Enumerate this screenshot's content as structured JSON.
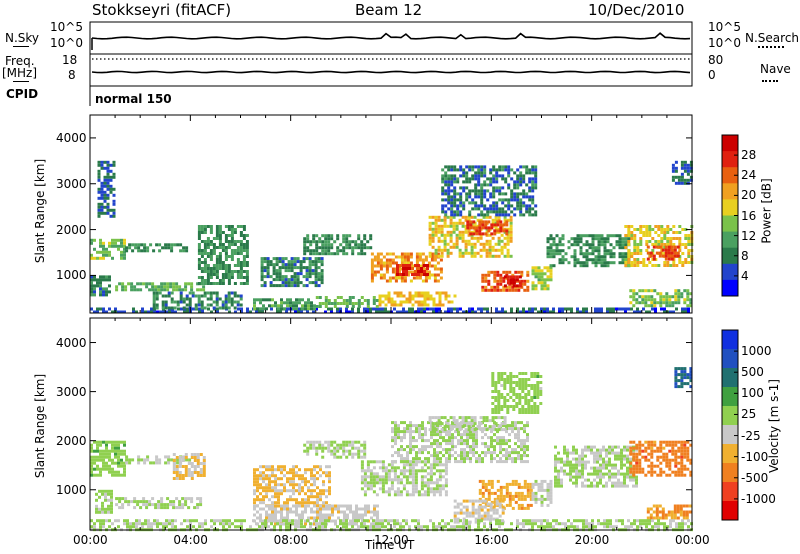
{
  "header": {
    "station": "Stokkseyri (fitACF)",
    "beam": "Beam 12",
    "date": "10/Dec/2010"
  },
  "top_panel": {
    "left_label": "N.Sky",
    "right_label": "N.Search",
    "left_ticks": [
      "10^5",
      "10^0"
    ],
    "right_ticks": [
      "10^5",
      "10^0"
    ]
  },
  "freq_panel": {
    "left_label_1": "Freq.",
    "left_label_2": "[MHz]",
    "right_label": "Nave",
    "left_ticks": [
      "18",
      "8"
    ],
    "right_ticks": [
      "80",
      "0"
    ]
  },
  "cpid": {
    "label": "CPID",
    "program": "normal 150"
  },
  "colors": {
    "frame": "#000000",
    "background": "#ffffff",
    "ground_scatter": "#c0c0c0"
  },
  "chart_data": [
    {
      "type": "heatmap",
      "panel": "power",
      "xlabel": "Time UT",
      "ylabel": "Slant Range [km]",
      "xlim": [
        0,
        24
      ],
      "ylim": [
        180,
        4500
      ],
      "x_ticks": [
        "00:00",
        "04:00",
        "08:00",
        "12:00",
        "16:00",
        "20:00",
        "00:00"
      ],
      "y_ticks": [
        "1000",
        "2000",
        "3000",
        "4000"
      ],
      "colorbar": {
        "label": "Power [dB]",
        "ticks": [
          "28",
          "24",
          "20",
          "16",
          "12",
          "8",
          "4"
        ],
        "range": [
          0,
          30
        ],
        "colors": [
          "#0000ff",
          "#2244cc",
          "#2a7a4a",
          "#4aa060",
          "#7ac24a",
          "#e8d020",
          "#f0a020",
          "#e86010",
          "#e02010",
          "#cc0000"
        ]
      },
      "regions": [
        {
          "t": [
            0.0,
            24.0
          ],
          "r": [
            180,
            300
          ],
          "v": 5
        },
        {
          "t": [
            0.0,
            1.4
          ],
          "r": [
            1400,
            1800
          ],
          "v": 13
        },
        {
          "t": [
            0.0,
            0.8
          ],
          "r": [
            550,
            1000
          ],
          "v": 8
        },
        {
          "t": [
            0.3,
            0.9
          ],
          "r": [
            2300,
            3500
          ],
          "v": 6
        },
        {
          "t": [
            1.4,
            3.8
          ],
          "r": [
            1550,
            1700
          ],
          "v": 9
        },
        {
          "t": [
            1.0,
            4.5
          ],
          "r": [
            700,
            850
          ],
          "v": 12
        },
        {
          "t": [
            2.5,
            6.0
          ],
          "r": [
            300,
            650
          ],
          "v": 8
        },
        {
          "t": [
            4.3,
            6.3
          ],
          "r": [
            800,
            2100
          ],
          "v": 9
        },
        {
          "t": [
            6.5,
            9.0
          ],
          "r": [
            300,
            500
          ],
          "v": 10
        },
        {
          "t": [
            6.8,
            9.2
          ],
          "r": [
            800,
            1400
          ],
          "v": 8
        },
        {
          "t": [
            8.5,
            11.2
          ],
          "r": [
            1500,
            1900
          ],
          "v": 9
        },
        {
          "t": [
            9.0,
            11.5
          ],
          "r": [
            300,
            550
          ],
          "v": 12
        },
        {
          "t": [
            11.2,
            14.0
          ],
          "r": [
            850,
            1500
          ],
          "v": 20
        },
        {
          "t": [
            12.2,
            13.5
          ],
          "r": [
            1000,
            1250
          ],
          "v": 26
        },
        {
          "t": [
            11.5,
            14.5
          ],
          "r": [
            350,
            650
          ],
          "v": 18
        },
        {
          "t": [
            13.5,
            16.8
          ],
          "r": [
            1400,
            2300
          ],
          "v": 17
        },
        {
          "t": [
            15.0,
            16.6
          ],
          "r": [
            1900,
            2200
          ],
          "v": 24
        },
        {
          "t": [
            15.6,
            17.5
          ],
          "r": [
            700,
            1100
          ],
          "v": 23
        },
        {
          "t": [
            16.5,
            17.2
          ],
          "r": [
            800,
            1000
          ],
          "v": 27
        },
        {
          "t": [
            14.0,
            17.8
          ],
          "r": [
            2300,
            3400
          ],
          "v": 7
        },
        {
          "t": [
            17.6,
            18.4
          ],
          "r": [
            700,
            1200
          ],
          "v": 14
        },
        {
          "t": [
            18.2,
            21.5
          ],
          "r": [
            1200,
            1900
          ],
          "v": 9
        },
        {
          "t": [
            21.3,
            24.0
          ],
          "r": [
            1200,
            2100
          ],
          "v": 17
        },
        {
          "t": [
            22.2,
            23.4
          ],
          "r": [
            1350,
            1650
          ],
          "v": 24
        },
        {
          "t": [
            21.5,
            24.0
          ],
          "r": [
            350,
            700
          ],
          "v": 13
        },
        {
          "t": [
            23.2,
            24.0
          ],
          "r": [
            3000,
            3500
          ],
          "v": 6
        }
      ]
    },
    {
      "type": "heatmap",
      "panel": "velocity",
      "xlabel": "Time UT",
      "ylabel": "Slant Range [km]",
      "xlim": [
        0,
        24
      ],
      "ylim": [
        180,
        4500
      ],
      "x_ticks": [
        "00:00",
        "04:00",
        "08:00",
        "12:00",
        "16:00",
        "20:00",
        "00:00"
      ],
      "y_ticks": [
        "1000",
        "2000",
        "3000",
        "4000"
      ],
      "colorbar": {
        "label": "Velocity [m s-1]",
        "ticks": [
          "1000",
          "500",
          "100",
          "25",
          "-25",
          "-100",
          "-500",
          "-1000"
        ],
        "range": [
          -1200,
          1200
        ],
        "colors": [
          "#e00000",
          "#f04020",
          "#f08020",
          "#f0b030",
          "#c8c8c8",
          "#90d050",
          "#40a040",
          "#207070",
          "#2050c0",
          "#1030e0"
        ]
      },
      "regions": [
        {
          "t": [
            0.0,
            1.4
          ],
          "r": [
            1300,
            2000
          ],
          "v": 150
        },
        {
          "t": [
            0.2,
            0.9
          ],
          "r": [
            550,
            1000
          ],
          "v": 80
        },
        {
          "t": [
            1.0,
            4.4
          ],
          "r": [
            650,
            850
          ],
          "v": 0
        },
        {
          "t": [
            1.4,
            4.0
          ],
          "r": [
            1550,
            1700
          ],
          "v": 0
        },
        {
          "t": [
            3.3,
            4.5
          ],
          "r": [
            1250,
            1750
          ],
          "v": -250
        },
        {
          "t": [
            6.5,
            9.5
          ],
          "r": [
            700,
            1500
          ],
          "v": -300
        },
        {
          "t": [
            6.5,
            11.5
          ],
          "r": [
            300,
            700
          ],
          "v": -150
        },
        {
          "t": [
            8.5,
            11.0
          ],
          "r": [
            1650,
            2000
          ],
          "v": 0
        },
        {
          "t": [
            10.8,
            14.2
          ],
          "r": [
            900,
            1600
          ],
          "v": 0
        },
        {
          "t": [
            12.0,
            17.5
          ],
          "r": [
            1600,
            2400
          ],
          "v": 0
        },
        {
          "t": [
            13.5,
            16.5
          ],
          "r": [
            2200,
            2500
          ],
          "v": 0
        },
        {
          "t": [
            15.5,
            17.6
          ],
          "r": [
            600,
            1200
          ],
          "v": -400
        },
        {
          "t": [
            14.5,
            16.5
          ],
          "r": [
            350,
            800
          ],
          "v": -150
        },
        {
          "t": [
            16.0,
            18.0
          ],
          "r": [
            2600,
            3400
          ],
          "v": 120
        },
        {
          "t": [
            17.6,
            18.4
          ],
          "r": [
            700,
            1200
          ],
          "v": -80
        },
        {
          "t": [
            18.5,
            21.8
          ],
          "r": [
            1100,
            1900
          ],
          "v": 0
        },
        {
          "t": [
            21.5,
            24.0
          ],
          "r": [
            1300,
            2000
          ],
          "v": -600
        },
        {
          "t": [
            22.2,
            24.0
          ],
          "r": [
            400,
            700
          ],
          "v": -500
        },
        {
          "t": [
            0.0,
            24.0
          ],
          "r": [
            180,
            400
          ],
          "v": 40
        },
        {
          "t": [
            23.3,
            24.0
          ],
          "r": [
            3100,
            3500
          ],
          "v": 700
        }
      ]
    }
  ]
}
